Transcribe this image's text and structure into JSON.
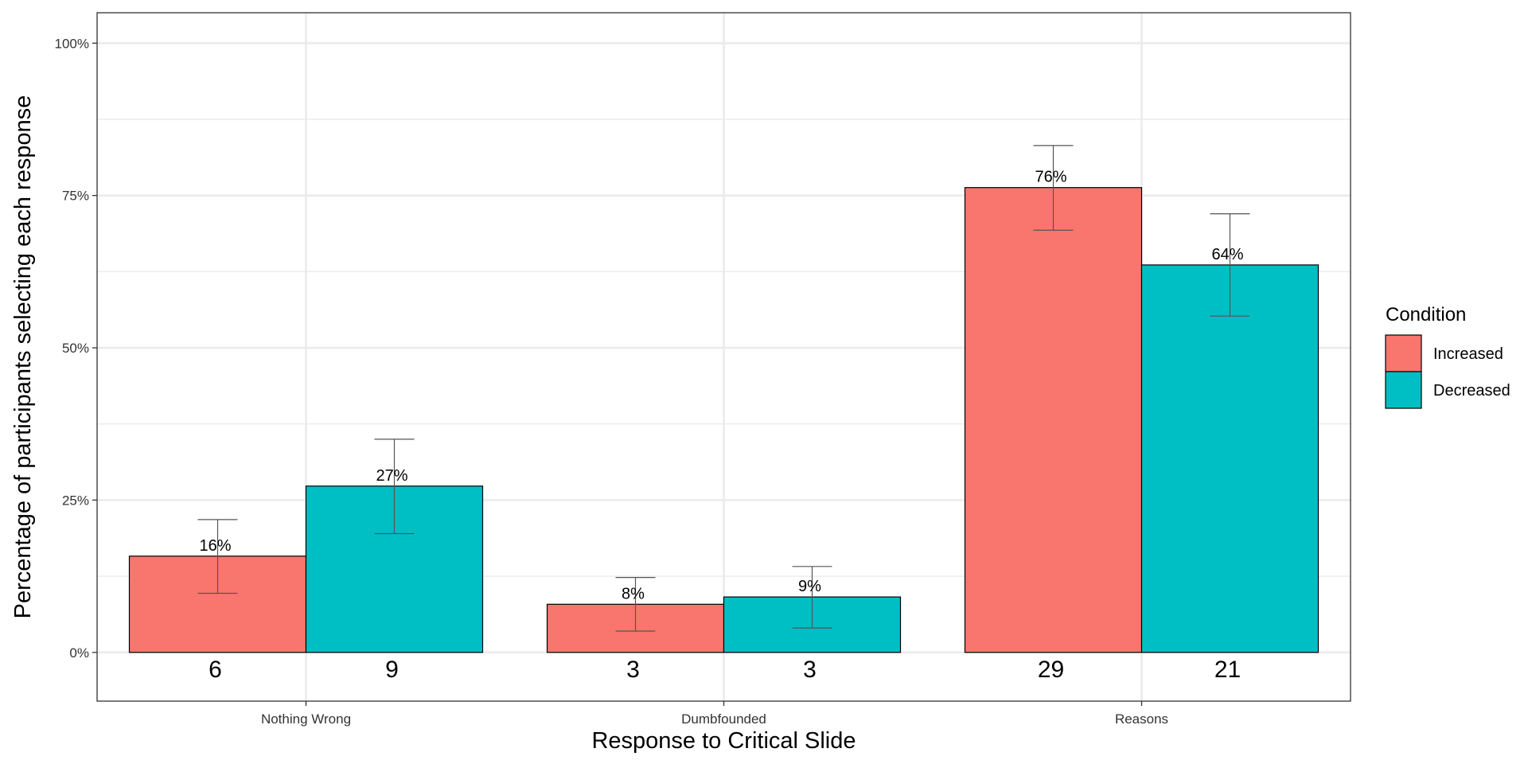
{
  "chart_data": {
    "type": "bar",
    "xlabel": "Response to Critical Slide",
    "ylabel": "Percentage of participants selecting each response",
    "categories": [
      "Nothing Wrong",
      "Dumbfounded",
      "Reasons"
    ],
    "ylim": [
      -0.08,
      1.05
    ],
    "y_ticks": [
      0,
      0.25,
      0.5,
      0.75,
      1.0
    ],
    "y_tick_labels": [
      "0%",
      "25%",
      "50%",
      "75%",
      "100%"
    ],
    "grid": true,
    "legend": {
      "title": "Condition",
      "position": "right"
    },
    "series": [
      {
        "name": "Increased",
        "color": "#F8766D",
        "values": [
          0.158,
          0.079,
          0.763
        ],
        "labels": [
          "16%",
          "8%",
          "76%"
        ],
        "counts": [
          "6",
          "3",
          "29"
        ],
        "error_low": [
          0.097,
          0.035,
          0.693
        ],
        "error_high": [
          0.218,
          0.123,
          0.832
        ]
      },
      {
        "name": "Decreased",
        "color": "#00BFC4",
        "values": [
          0.273,
          0.091,
          0.636
        ],
        "labels": [
          "27%",
          "9%",
          "64%"
        ],
        "counts": [
          "9",
          "3",
          "21"
        ],
        "error_low": [
          0.195,
          0.04,
          0.552
        ],
        "error_high": [
          0.35,
          0.141,
          0.72
        ]
      }
    ]
  }
}
